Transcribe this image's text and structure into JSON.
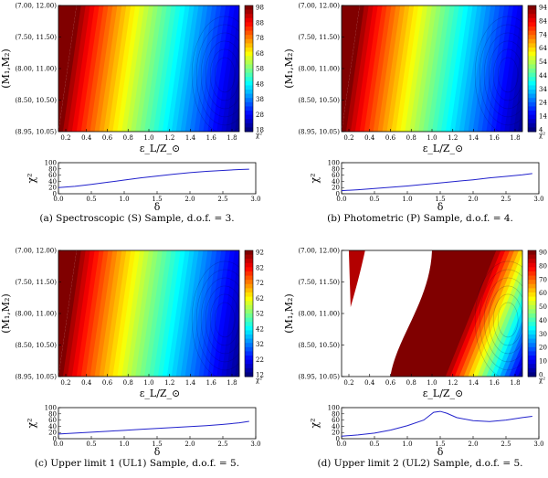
{
  "panels": [
    {
      "caption": "(a) Spectroscopic (S) Sample, d.o.f. = 3.",
      "colorbar_ticks": [
        "98",
        "88",
        "78",
        "68",
        "58",
        "48",
        "38",
        "28",
        "18"
      ],
      "colorbar_label": "χ²",
      "colorbar_range": [
        18,
        98
      ],
      "contour": {
        "left_value": 98,
        "right_value": 18,
        "min_at": [
          1.8,
          1.6
        ],
        "mask": "none"
      }
    },
    {
      "caption": "(b) Photometric (P) Sample, d.o.f. = 4.",
      "colorbar_ticks": [
        "94",
        "84",
        "74",
        "64",
        "54",
        "44",
        "34",
        "24",
        "14",
        "4"
      ],
      "colorbar_label": "χ²",
      "colorbar_range": [
        4,
        94
      ],
      "contour": {
        "left_value": 94,
        "right_value": 4,
        "min_at": [
          1.8,
          0.5
        ],
        "mask": "left-corner"
      }
    },
    {
      "caption": "(c) Upper limit 1 (UL1) Sample, d.o.f. = 5.",
      "colorbar_ticks": [
        "92",
        "82",
        "72",
        "62",
        "52",
        "42",
        "32",
        "22",
        "12"
      ],
      "colorbar_label": "χ²",
      "colorbar_range": [
        12,
        92
      ],
      "contour": {
        "left_value": 92,
        "right_value": 12,
        "min_at": [
          1.65,
          2.0
        ],
        "mask": "left-corner"
      }
    },
    {
      "caption": "(d) Upper limit 2 (UL2) Sample, d.o.f. = 5.",
      "colorbar_ticks": [
        "90",
        "80",
        "70",
        "60",
        "50",
        "40",
        "30",
        "20",
        "10",
        "0"
      ],
      "colorbar_label": "χ²",
      "colorbar_range": [
        0,
        90
      ],
      "contour": {
        "left_value": 90,
        "right_value": 0,
        "min_at": [
          1.6,
          1.5
        ],
        "mask": "ul2"
      }
    }
  ],
  "shared": {
    "xlabel": "ε_L/Z_⊙",
    "ylabel": "(M₁,M₂)",
    "x_ticks": [
      "0.2",
      "0.4",
      "0.6",
      "0.8",
      "1.0",
      "1.2",
      "1.4",
      "1.6",
      "1.8"
    ],
    "y_ticks": [
      "(7.00, 12.00)",
      "(7.50, 11.50)",
      "(8.00, 11.00)",
      "(8.50, 10.50)",
      "(8.95, 10.05)"
    ],
    "line_xlabel": "δ",
    "line_ylabel": "χ²",
    "line_x_ticks": [
      "0.0",
      "0.5",
      "1.0",
      "1.5",
      "2.0",
      "2.5",
      "3.0"
    ],
    "line_y_ticks": [
      "0",
      "20",
      "40",
      "60",
      "80",
      "100"
    ]
  },
  "chart_data": [
    {
      "type": "heatmap",
      "title": "(a) Spectroscopic (S) Sample, d.o.f. = 3.",
      "xlabel": "ε_L/Z_⊙",
      "ylabel": "(M₁,M₂)",
      "xlim": [
        0.1,
        1.85
      ],
      "zlim": [
        18,
        98
      ]
    },
    {
      "type": "line",
      "xlabel": "δ",
      "ylabel": "χ²",
      "xlim": [
        0,
        3
      ],
      "ylim": [
        0,
        100
      ],
      "x": [
        0,
        0.25,
        0.5,
        0.75,
        1.0,
        1.25,
        1.5,
        1.75,
        2.0,
        2.25,
        2.5,
        2.75,
        2.9
      ],
      "values": [
        20,
        24,
        30,
        37,
        44,
        51,
        57,
        63,
        68,
        72,
        75,
        78,
        79
      ]
    },
    {
      "type": "heatmap",
      "title": "(b) Photometric (P) Sample, d.o.f. = 4.",
      "xlabel": "ε_L/Z_⊙",
      "ylabel": "(M₁,M₂)",
      "xlim": [
        0.1,
        1.85
      ],
      "zlim": [
        4,
        94
      ]
    },
    {
      "type": "line",
      "xlabel": "δ",
      "ylabel": "χ²",
      "xlim": [
        0,
        3
      ],
      "ylim": [
        0,
        100
      ],
      "x": [
        0,
        0.25,
        0.5,
        0.75,
        1.0,
        1.25,
        1.5,
        1.75,
        2.0,
        2.25,
        2.5,
        2.75,
        2.9
      ],
      "values": [
        10,
        13,
        17,
        21,
        25,
        30,
        35,
        40,
        45,
        51,
        56,
        61,
        65
      ]
    },
    {
      "type": "heatmap",
      "title": "(c) Upper limit 1 (UL1) Sample, d.o.f. = 5.",
      "xlabel": "ε_L/Z_⊙",
      "ylabel": "(M₁,M₂)",
      "xlim": [
        0.1,
        1.85
      ],
      "zlim": [
        12,
        92
      ]
    },
    {
      "type": "line",
      "xlabel": "δ",
      "ylabel": "χ²",
      "xlim": [
        0,
        3
      ],
      "ylim": [
        0,
        100
      ],
      "x": [
        0,
        0.25,
        0.5,
        0.75,
        1.0,
        1.25,
        1.5,
        1.75,
        2.0,
        2.25,
        2.5,
        2.75,
        2.9
      ],
      "values": [
        15,
        18,
        21,
        24,
        27,
        30,
        33,
        36,
        39,
        42,
        46,
        51,
        56
      ]
    },
    {
      "type": "heatmap",
      "title": "(d) Upper limit 2 (UL2) Sample, d.o.f. = 5.",
      "xlabel": "ε_L/Z_⊙",
      "ylabel": "(M₁,M₂)",
      "xlim": [
        0.1,
        1.85
      ],
      "zlim": [
        0,
        90
      ]
    },
    {
      "type": "line",
      "xlabel": "δ",
      "ylabel": "χ²",
      "xlim": [
        0,
        3
      ],
      "ylim": [
        0,
        100
      ],
      "x": [
        0,
        0.25,
        0.5,
        0.75,
        1.0,
        1.25,
        1.4,
        1.5,
        1.6,
        1.75,
        2.0,
        2.25,
        2.5,
        2.75,
        2.9
      ],
      "values": [
        8,
        12,
        18,
        28,
        42,
        60,
        85,
        88,
        82,
        68,
        58,
        55,
        60,
        68,
        72
      ]
    }
  ]
}
